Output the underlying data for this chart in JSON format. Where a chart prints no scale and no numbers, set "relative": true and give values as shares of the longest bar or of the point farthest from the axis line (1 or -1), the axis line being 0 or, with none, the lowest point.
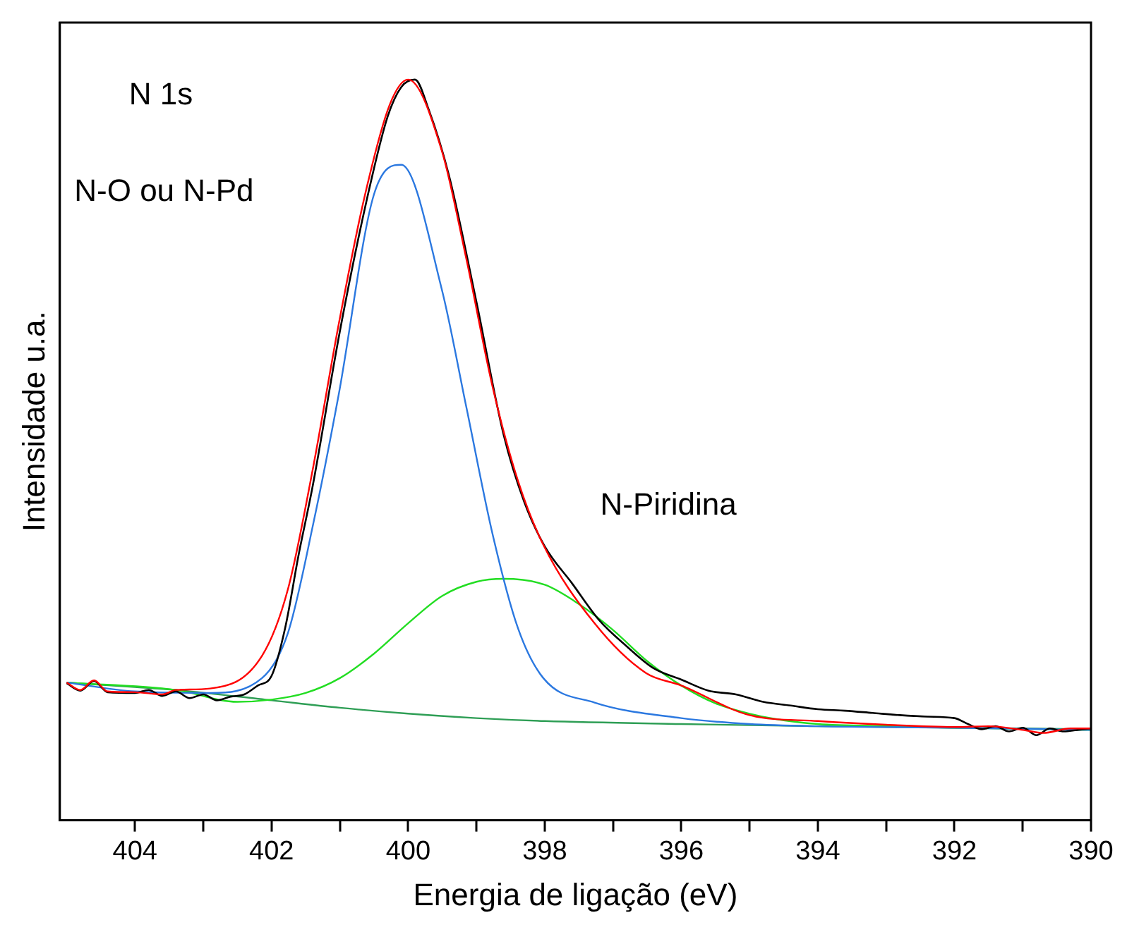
{
  "chart_data": {
    "type": "line",
    "xlabel": "Energia de ligação (eV)",
    "ylabel": "Intensidade u.a.",
    "relative": true,
    "xlim": [
      405.1,
      390
    ],
    "xticks": [
      404,
      {
        "value": 403,
        "label": null
      },
      402,
      {
        "value": 401,
        "label": null
      },
      400,
      {
        "value": 399,
        "label": null
      },
      398,
      {
        "value": 397,
        "label": null
      },
      396,
      {
        "value": 395,
        "label": null
      },
      394,
      {
        "value": 393,
        "label": null
      },
      392,
      {
        "value": 391,
        "label": null
      },
      390
    ],
    "grid": false,
    "legend": false,
    "marker": "none",
    "line_style": "solid",
    "annotations": [
      "N 1s",
      "N-O ou N-Pd",
      "N-Piridina"
    ],
    "series": [
      {
        "color": "#2e9e55",
        "x": [
          405,
          404,
          403.4,
          402,
          401,
          400,
          399,
          398,
          396,
          394,
          392,
          390
        ],
        "values": [
          0.186,
          0.18,
          0.176,
          0.162,
          0.152,
          0.144,
          0.138,
          0.134,
          0.13,
          0.127,
          0.125,
          0.123
        ]
      },
      {
        "color": "#22dd22",
        "x": [
          405,
          403.4,
          402.5,
          402,
          401.5,
          401,
          400.5,
          400,
          399.5,
          399,
          398.6,
          398,
          397.5,
          397,
          396.5,
          396,
          395.5,
          395,
          394.5,
          394,
          393,
          392,
          390
        ],
        "values": [
          0.186,
          0.176,
          0.16,
          0.163,
          0.172,
          0.192,
          0.225,
          0.266,
          0.303,
          0.322,
          0.326,
          0.318,
          0.292,
          0.257,
          0.215,
          0.182,
          0.158,
          0.144,
          0.135,
          0.13,
          0.127,
          0.125,
          0.122
        ]
      },
      {
        "color": "#2b78e0",
        "x": [
          405,
          404,
          402.9,
          402.14,
          401.76,
          401.39,
          401.02,
          400.5,
          400.1,
          399.51,
          399.15,
          398.76,
          398.39,
          398.02,
          397.27,
          396,
          395,
          394,
          392,
          390
        ],
        "values": [
          0.186,
          0.174,
          0.172,
          0.192,
          0.253,
          0.4,
          0.573,
          0.845,
          0.885,
          0.718,
          0.559,
          0.385,
          0.259,
          0.192,
          0.159,
          0.138,
          0.13,
          0.127,
          0.125,
          0.122
        ]
      },
      {
        "color": "#000000",
        "x": [
          405,
          404.8,
          404.6,
          404.4,
          404,
          403.8,
          403.6,
          403.4,
          403.2,
          403,
          402.8,
          402.6,
          402.4,
          402.2,
          402,
          401.8,
          401.6,
          401.4,
          401,
          400.6,
          400.3,
          400.1,
          399.9,
          399.7,
          399.4,
          399,
          398.6,
          398.3,
          398,
          397.6,
          397.2,
          396.8,
          396.4,
          396,
          395.6,
          395.2,
          394.8,
          394.4,
          394,
          393.6,
          393.2,
          392.8,
          392.4,
          392,
          391.8,
          391.6,
          391.4,
          391.2,
          391,
          390.8,
          390.6,
          390.4,
          390.2,
          390
        ],
        "values": [
          0.185,
          0.175,
          0.188,
          0.173,
          0.172,
          0.176,
          0.168,
          0.174,
          0.165,
          0.17,
          0.162,
          0.167,
          0.17,
          0.182,
          0.195,
          0.26,
          0.36,
          0.45,
          0.66,
          0.84,
          0.95,
          0.99,
          1,
          0.96,
          0.87,
          0.7,
          0.52,
          0.43,
          0.37,
          0.32,
          0.27,
          0.235,
          0.205,
          0.19,
          0.175,
          0.17,
          0.16,
          0.155,
          0.15,
          0.148,
          0.145,
          0.142,
          0.14,
          0.138,
          0.13,
          0.123,
          0.127,
          0.12,
          0.125,
          0.115,
          0.124,
          0.12,
          0.122,
          0.124
        ]
      },
      {
        "color": "#ff0000",
        "x": [
          405,
          404.8,
          404.6,
          404.4,
          404,
          403.6,
          403.4,
          402.9,
          402.14,
          401.76,
          401.39,
          401.02,
          400.64,
          400.27,
          400,
          399.51,
          399.15,
          398.76,
          398.39,
          398.02,
          397.27,
          396.52,
          396,
          395,
          394,
          393,
          392,
          391.5,
          391,
          390.7,
          390.3,
          390
        ],
        "values": [
          0.186,
          0.176,
          0.189,
          0.174,
          0.173,
          0.17,
          0.176,
          0.178,
          0.222,
          0.312,
          0.477,
          0.668,
          0.841,
          0.966,
          1,
          0.905,
          0.759,
          0.584,
          0.458,
          0.372,
          0.266,
          0.199,
          0.182,
          0.142,
          0.134,
          0.129,
          0.126,
          0.127,
          0.122,
          0.118,
          0.124,
          0.124
        ]
      }
    ]
  }
}
